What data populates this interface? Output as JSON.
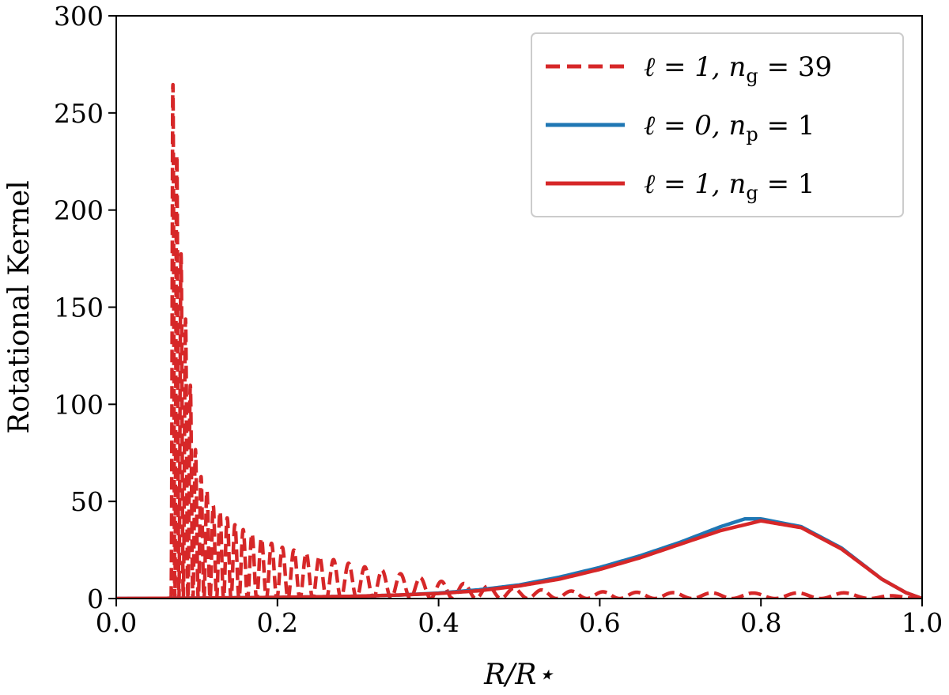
{
  "chart_data": {
    "type": "line",
    "title": "",
    "xlabel": "R/R⋆",
    "ylabel": "Rotational Kernel",
    "xlim": [
      0.0,
      1.0
    ],
    "ylim": [
      0,
      300
    ],
    "xticks": [
      0.0,
      0.2,
      0.4,
      0.6,
      0.8,
      1.0
    ],
    "xtick_labels": [
      "0.0",
      "0.2",
      "0.4",
      "0.6",
      "0.8",
      "1.0"
    ],
    "yticks": [
      0,
      50,
      100,
      150,
      200,
      250,
      300
    ],
    "ytick_labels": [
      "0",
      "50",
      "100",
      "150",
      "200",
      "250",
      "300"
    ],
    "grid": false,
    "legend_position": "top-right",
    "series": [
      {
        "name": "ℓ = 1,  n_g = 39",
        "legend": {
          "left": "ℓ = 1,  n",
          "sub": "g",
          "right": " = 39"
        },
        "color": "#d62728",
        "style": "dashed",
        "envelope": {
          "x": [
            0.0,
            0.065,
            0.068,
            0.07,
            0.075,
            0.08,
            0.09,
            0.1,
            0.12,
            0.15,
            0.2,
            0.25,
            0.3,
            0.35,
            0.4,
            0.45,
            0.5,
            0.55,
            0.6,
            0.65,
            0.7,
            0.8,
            0.9,
            0.95,
            1.0
          ],
          "y": [
            0.0,
            0.0,
            150,
            267,
            230,
            180,
            120,
            68,
            48,
            37,
            27,
            22,
            17,
            13,
            9,
            7,
            5,
            4,
            3.5,
            3.2,
            3,
            2.8,
            3,
            2,
            0
          ]
        },
        "oscillations": 40,
        "oscillation_range": [
          0.068,
          1.0
        ]
      },
      {
        "name": "ℓ = 0,  n_p = 1",
        "legend": {
          "left": "ℓ = 0,  n",
          "sub": "p",
          "right": " = 1"
        },
        "color": "#1f77b4",
        "style": "solid",
        "x": [
          0.0,
          0.1,
          0.2,
          0.3,
          0.35,
          0.4,
          0.45,
          0.5,
          0.55,
          0.6,
          0.65,
          0.7,
          0.75,
          0.78,
          0.8,
          0.85,
          0.9,
          0.95,
          0.98,
          1.0
        ],
        "y": [
          0.0,
          0.2,
          0.6,
          1.2,
          1.8,
          2.8,
          4.5,
          7,
          11,
          16,
          22,
          29,
          37,
          41,
          41,
          37,
          26,
          10,
          3,
          0
        ]
      },
      {
        "name": "ℓ = 1,  n_g = 1",
        "legend": {
          "left": "ℓ = 1,  n",
          "sub": "g",
          "right": " = 1"
        },
        "color": "#d62728",
        "style": "solid",
        "x": [
          0.0,
          0.1,
          0.2,
          0.3,
          0.35,
          0.4,
          0.45,
          0.5,
          0.55,
          0.6,
          0.65,
          0.7,
          0.75,
          0.8,
          0.85,
          0.9,
          0.95,
          0.98,
          1.0
        ],
        "y": [
          0.0,
          0.2,
          0.6,
          1.2,
          1.8,
          2.6,
          4,
          6.5,
          10,
          15,
          21,
          28,
          35,
          40,
          36.5,
          25.5,
          10,
          3,
          0
        ]
      }
    ]
  }
}
